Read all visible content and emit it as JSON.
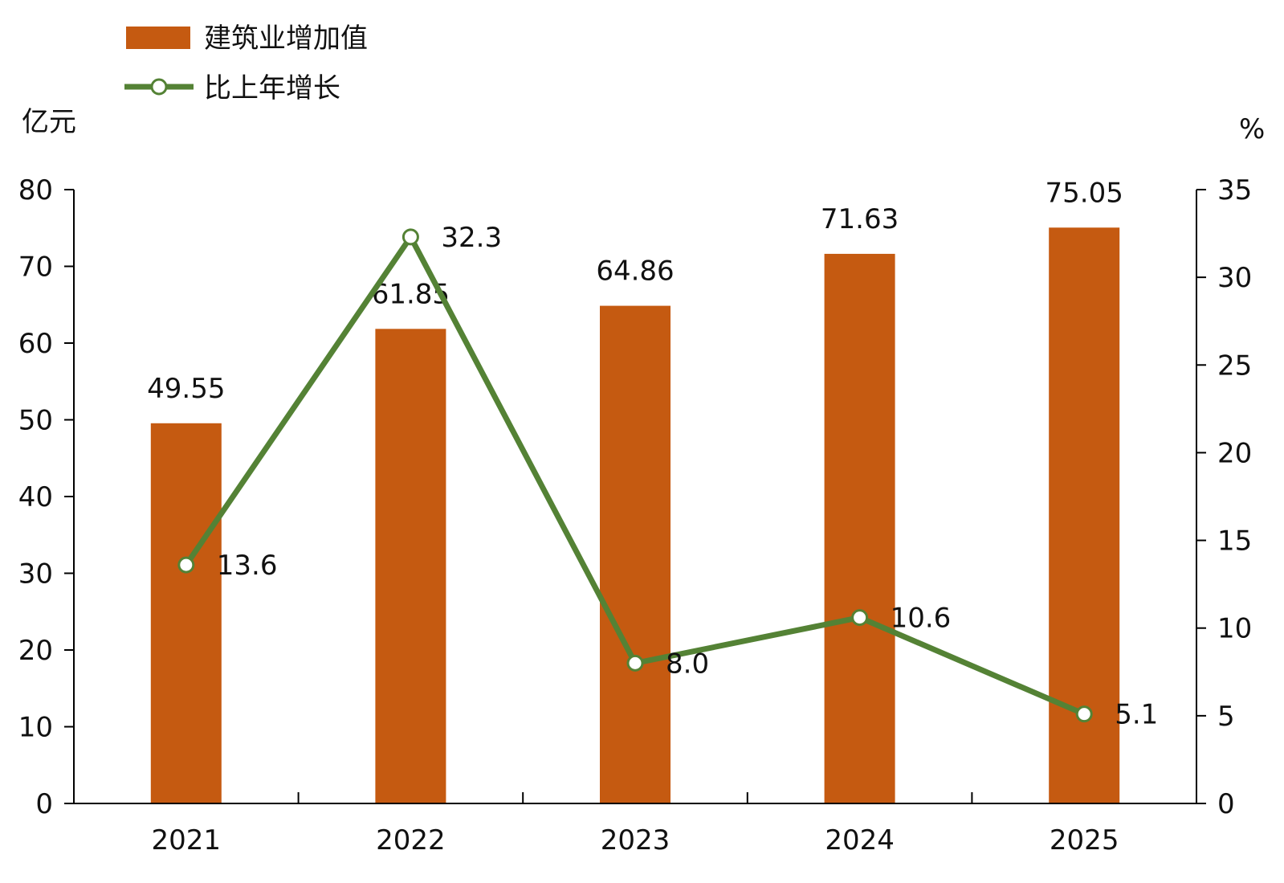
{
  "chart_data": {
    "type": "bar",
    "categories": [
      "2021",
      "2022",
      "2023",
      "2024",
      "2025"
    ],
    "series": [
      {
        "name": "建筑业增加值",
        "type": "bar",
        "axis": "left",
        "color": "#c55a11",
        "values": [
          49.55,
          61.85,
          64.86,
          71.63,
          75.05
        ],
        "labels": [
          "49.55",
          "61.85",
          "64.86",
          "71.63",
          "75.05"
        ]
      },
      {
        "name": "比上年增长",
        "type": "line",
        "axis": "right",
        "color": "#548235",
        "values": [
          13.6,
          32.3,
          8.0,
          10.6,
          5.1
        ],
        "labels": [
          "13.6",
          "32.3",
          "8.0",
          "10.6",
          "5.1"
        ]
      }
    ],
    "y_left": {
      "unit": "亿元",
      "range": [
        0,
        80
      ],
      "ticks": [
        "0",
        "10",
        "20",
        "30",
        "40",
        "50",
        "60",
        "70",
        "80"
      ]
    },
    "y_right": {
      "unit": "%",
      "range": [
        0,
        35
      ],
      "ticks": [
        "0",
        "5",
        "10",
        "15",
        "20",
        "25",
        "30",
        "35"
      ]
    },
    "legend": {
      "position": "top-left"
    },
    "grid": false
  }
}
